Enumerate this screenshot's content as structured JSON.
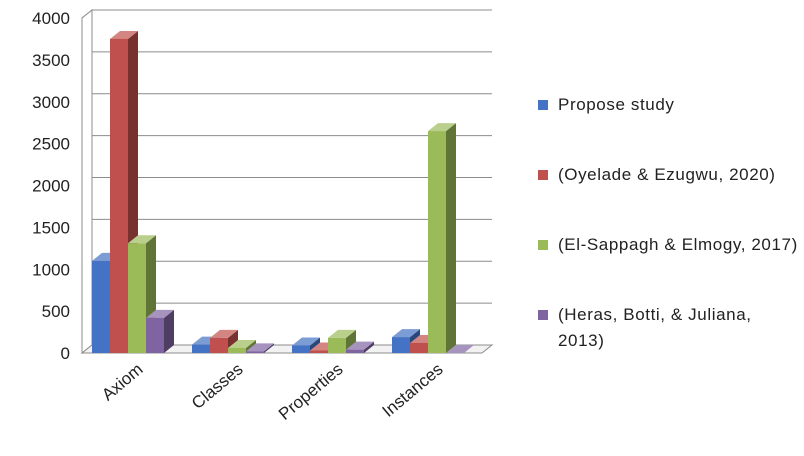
{
  "chart_data": {
    "type": "bar",
    "categories": [
      "Axiom",
      "Classes",
      "Properties",
      "Instances"
    ],
    "series": [
      {
        "name": "Propose study",
        "values": [
          1100,
          100,
          90,
          190
        ],
        "color": "#4472C4"
      },
      {
        "name": "(Oyelade & Ezugwu, 2020)",
        "values": [
          3750,
          180,
          30,
          120
        ],
        "color": "#C0504D"
      },
      {
        "name": "(El-Sappagh & Elmogy, 2017)",
        "values": [
          1310,
          60,
          180,
          2650
        ],
        "color": "#9BBB59"
      },
      {
        "name": "(Heras, Botti, & Juliana, 2013)",
        "values": [
          420,
          20,
          40,
          0
        ],
        "color": "#8064A2"
      }
    ],
    "y_ticks": [
      "0",
      "500",
      "1000",
      "1500",
      "2000",
      "2500",
      "3000",
      "3500",
      "4000"
    ],
    "ylim": [
      0,
      4000
    ],
    "grid": true,
    "legend_position": "right",
    "style": "3d-clustered-column"
  }
}
